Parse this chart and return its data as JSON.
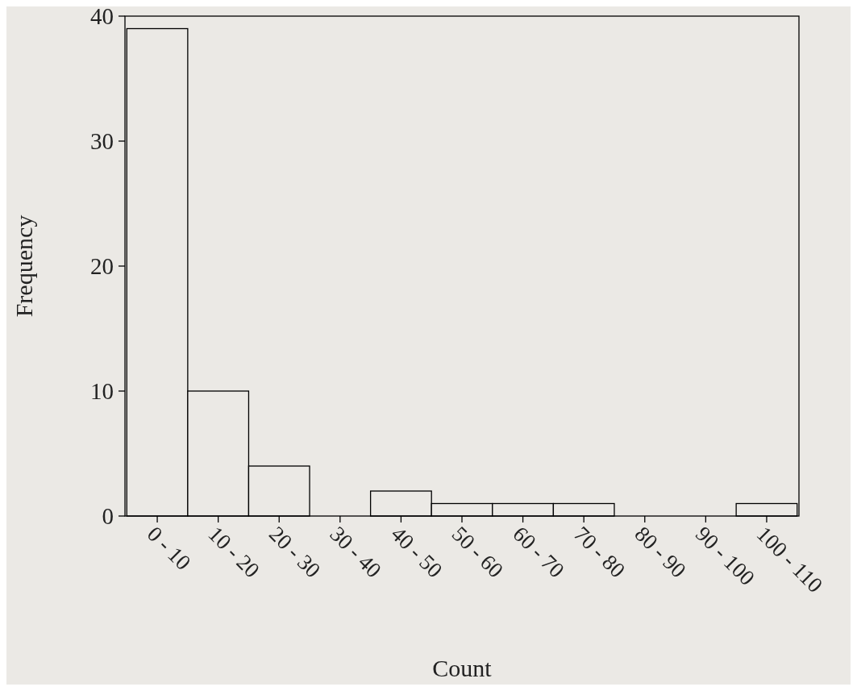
{
  "chart_data": {
    "type": "bar",
    "xlabel": "Count",
    "ylabel": "Frequency",
    "categories": [
      "0 - 10",
      "10 - 20",
      "20 - 30",
      "30 - 40",
      "40 - 50",
      "50 - 60",
      "60 - 70",
      "70 - 80",
      "80 - 90",
      "90 - 100",
      "100 - 110"
    ],
    "values": [
      39,
      10,
      4,
      0,
      2,
      1,
      1,
      1,
      0,
      0,
      1
    ],
    "color": "#ebe9e5",
    "ylim": [
      0,
      40
    ],
    "yticks": [
      0,
      10,
      20,
      30,
      40
    ],
    "grid": false
  }
}
